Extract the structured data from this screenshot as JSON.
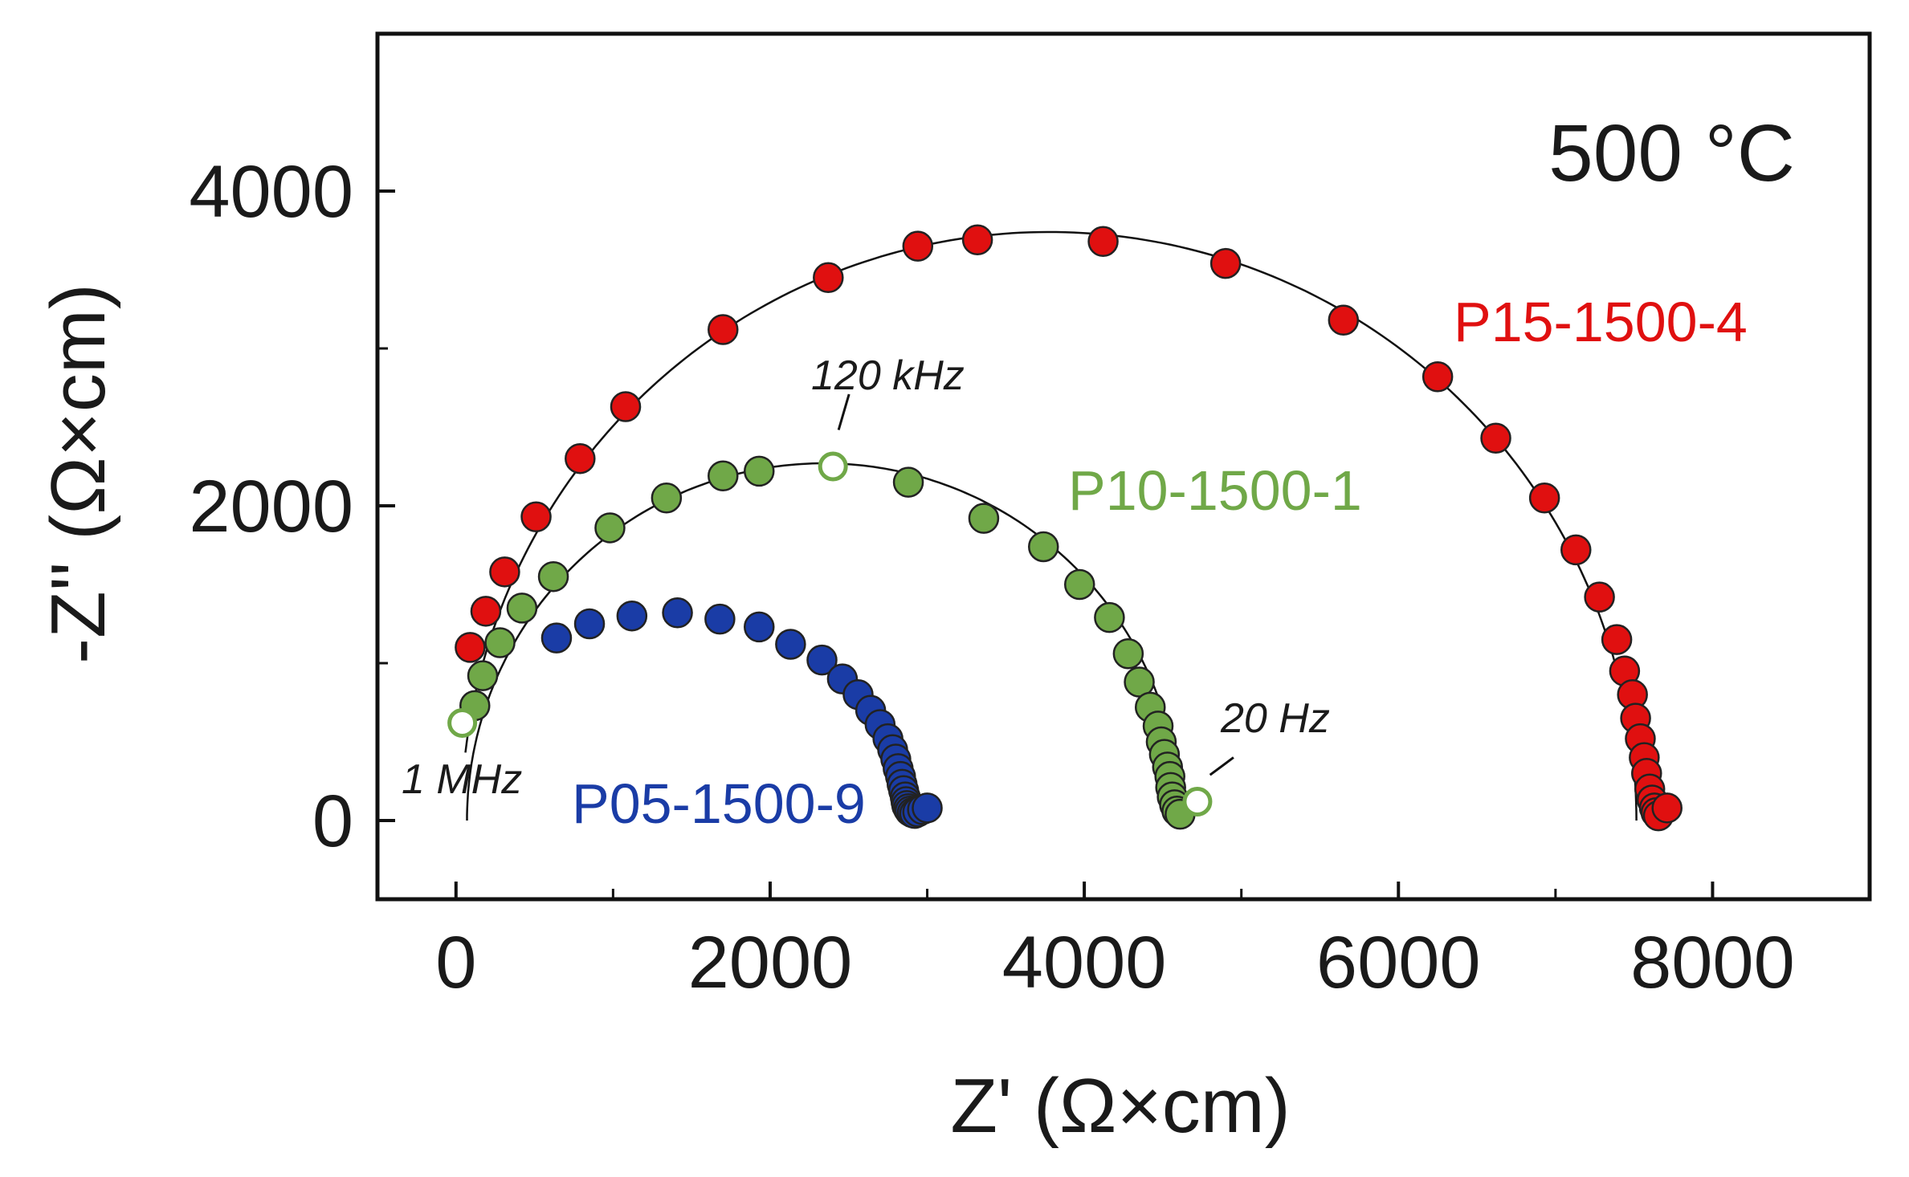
{
  "chart_data": {
    "type": "scatter",
    "title": "",
    "annotation": "500 °C",
    "xlabel": "Z' (Ω×cm)",
    "ylabel": "-Z'' (Ω×cm)",
    "xlim": [
      -500,
      9000
    ],
    "ylim": [
      -500,
      5000
    ],
    "xticks": [
      0,
      2000,
      4000,
      6000,
      8000
    ],
    "yticks": [
      0,
      2000,
      4000
    ],
    "xtick_labels": [
      "0",
      "2000",
      "4000",
      "6000",
      "8000"
    ],
    "ytick_labels": [
      "0",
      "2000",
      "4000"
    ],
    "grid": false,
    "fit_lines": true,
    "series": [
      {
        "name": "P15-1500-4",
        "color": "#e01010",
        "fit": {
          "center": [
            3775,
            0
          ],
          "radius": 3740,
          "from_x": 60
        },
        "points": [
          [
            90,
            1100
          ],
          [
            190,
            1330
          ],
          [
            310,
            1580
          ],
          [
            510,
            1930
          ],
          [
            790,
            2300
          ],
          [
            1080,
            2630
          ],
          [
            1700,
            3120
          ],
          [
            2370,
            3450
          ],
          [
            2940,
            3650
          ],
          [
            3320,
            3690
          ],
          [
            4120,
            3680
          ],
          [
            4900,
            3540
          ],
          [
            5650,
            3180
          ],
          [
            6250,
            2820
          ],
          [
            6620,
            2430
          ],
          [
            6930,
            2050
          ],
          [
            7130,
            1720
          ],
          [
            7280,
            1420
          ],
          [
            7390,
            1150
          ],
          [
            7440,
            950
          ],
          [
            7490,
            800
          ],
          [
            7510,
            650
          ],
          [
            7540,
            520
          ],
          [
            7565,
            400
          ],
          [
            7580,
            300
          ],
          [
            7600,
            200
          ],
          [
            7615,
            130
          ],
          [
            7630,
            80
          ],
          [
            7640,
            50
          ],
          [
            7655,
            30
          ],
          [
            7710,
            80
          ]
        ]
      },
      {
        "name": "P10-1500-1",
        "color": "#70a848",
        "fit": {
          "center": [
            2340,
            0
          ],
          "radius": 2270,
          "from_x": 70
        },
        "points": [
          [
            120,
            730
          ],
          [
            170,
            920
          ],
          [
            280,
            1130
          ],
          [
            420,
            1350
          ],
          [
            620,
            1550
          ],
          [
            980,
            1860
          ],
          [
            1340,
            2050
          ],
          [
            1700,
            2190
          ],
          [
            1930,
            2220
          ],
          [
            2880,
            2150
          ],
          [
            3360,
            1920
          ],
          [
            3740,
            1740
          ],
          [
            3970,
            1500
          ],
          [
            4160,
            1290
          ],
          [
            4280,
            1060
          ],
          [
            4350,
            880
          ],
          [
            4420,
            720
          ],
          [
            4470,
            600
          ],
          [
            4490,
            500
          ],
          [
            4510,
            420
          ],
          [
            4530,
            340
          ],
          [
            4545,
            280
          ],
          [
            4550,
            210
          ],
          [
            4560,
            150
          ],
          [
            4575,
            100
          ],
          [
            4590,
            60
          ],
          [
            4610,
            40
          ]
        ],
        "open_points": [
          [
            40,
            620
          ],
          [
            2400,
            2250
          ],
          [
            4720,
            120
          ]
        ]
      },
      {
        "name": "P05-1500-9",
        "color": "#1a3ca6",
        "fit": null,
        "points": [
          [
            640,
            1160
          ],
          [
            850,
            1250
          ],
          [
            1120,
            1300
          ],
          [
            1410,
            1320
          ],
          [
            1680,
            1280
          ],
          [
            1930,
            1230
          ],
          [
            2130,
            1120
          ],
          [
            2330,
            1020
          ],
          [
            2460,
            900
          ],
          [
            2560,
            800
          ],
          [
            2640,
            700
          ],
          [
            2700,
            610
          ],
          [
            2750,
            520
          ],
          [
            2780,
            450
          ],
          [
            2800,
            390
          ],
          [
            2815,
            330
          ],
          [
            2830,
            280
          ],
          [
            2840,
            230
          ],
          [
            2850,
            190
          ],
          [
            2860,
            150
          ],
          [
            2865,
            120
          ],
          [
            2870,
            95
          ],
          [
            2880,
            75
          ],
          [
            2890,
            60
          ],
          [
            2905,
            50
          ],
          [
            2920,
            45
          ],
          [
            2940,
            55
          ],
          [
            2970,
            70
          ],
          [
            3000,
            80
          ]
        ]
      }
    ],
    "frequency_labels": [
      {
        "text": "1 MHz",
        "at": [
          40,
          620
        ],
        "pointer": false
      },
      {
        "text": "120 kHz",
        "at": [
          2400,
          2250
        ],
        "pointer": true
      },
      {
        "text": "20 Hz",
        "at": [
          4720,
          120
        ],
        "pointer": true
      }
    ]
  }
}
